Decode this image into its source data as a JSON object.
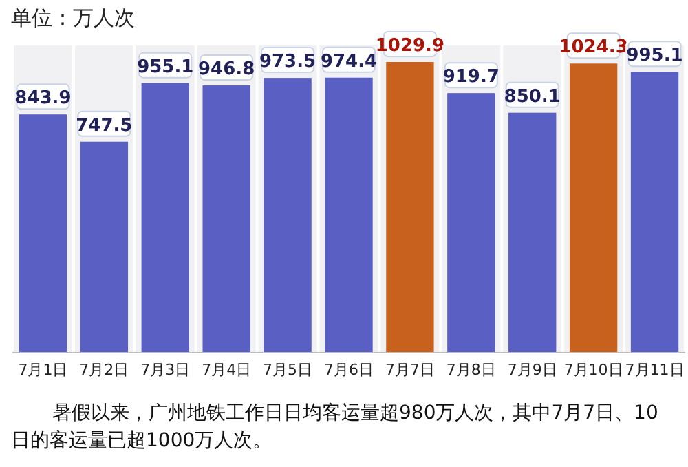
{
  "chart_data": {
    "type": "bar",
    "title": "单位：万人次",
    "categories": [
      "7月1日",
      "7月2日",
      "7月3日",
      "7月4日",
      "7月5日",
      "7月6日",
      "7月7日",
      "7月8日",
      "7月9日",
      "7月10日",
      "7月11日"
    ],
    "values": [
      843.9,
      747.5,
      955.1,
      946.8,
      973.5,
      974.4,
      1029.9,
      919.7,
      850.1,
      1024.3,
      995.1
    ],
    "colors": [
      "#5a5fc4",
      "#5a5fc4",
      "#5a5fc4",
      "#5a5fc4",
      "#5a5fc4",
      "#5a5fc4",
      "#c8601e",
      "#5a5fc4",
      "#5a5fc4",
      "#c8601e",
      "#5a5fc4"
    ],
    "data_labels": true,
    "annotations": [
      "暑假以来，广州地铁工作日日均客运量超980万人次，其中7月7日、10日的客运量已超1000万人次。"
    ]
  }
}
